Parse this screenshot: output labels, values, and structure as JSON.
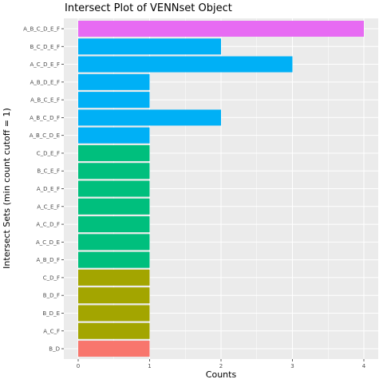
{
  "chart_data": {
    "type": "bar",
    "orientation": "horizontal",
    "title": "Intersect Plot of VENNset Object",
    "xlabel": "Counts",
    "ylabel": "Intersect Sets (min count cutoff = 1)",
    "xlim": [
      0,
      4
    ],
    "xticks": [
      "0",
      "1",
      "2",
      "3",
      "4"
    ],
    "grid": true,
    "legend": "none",
    "categories": [
      "A_B_C_D_E_F",
      "B_C_D_E_F",
      "A_C_D_E_F",
      "A_B_D_E_F",
      "A_B_C_E_F",
      "A_B_C_D_F",
      "A_B_C_D_E",
      "C_D_E_F",
      "B_C_E_F",
      "A_D_E_F",
      "A_C_E_F",
      "A_C_D_F",
      "A_C_D_E",
      "A_B_D_F",
      "C_D_F",
      "B_D_F",
      "B_D_E",
      "A_C_F",
      "B_D"
    ],
    "values": [
      4,
      2,
      3,
      1,
      1,
      2,
      1,
      1,
      1,
      1,
      1,
      1,
      1,
      1,
      1,
      1,
      1,
      1,
      1
    ],
    "colors": [
      "#E76BF3",
      "#00B0F6",
      "#00B0F6",
      "#00B0F6",
      "#00B0F6",
      "#00B0F6",
      "#00B0F6",
      "#00BF7D",
      "#00BF7D",
      "#00BF7D",
      "#00BF7D",
      "#00BF7D",
      "#00BF7D",
      "#00BF7D",
      "#A3A500",
      "#A3A500",
      "#A3A500",
      "#A3A500",
      "#F8766D"
    ],
    "panel_color": "#EBEBEB",
    "grid_color": "#FFFFFF"
  }
}
